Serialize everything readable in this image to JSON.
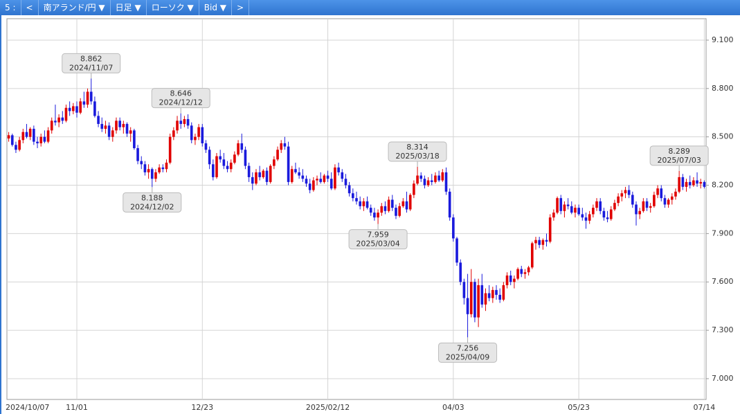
{
  "toolbar": {
    "page": "5 :",
    "prev": "<",
    "pair": "南アランド/円 ▼",
    "period": "日足 ▼",
    "style": "ローソク ▼",
    "side": "Bid ▼",
    "next": ">"
  },
  "chart_data": {
    "type": "candlestick",
    "categories": [
      "2024/10/07",
      null,
      null,
      null,
      null,
      null,
      null,
      null,
      null,
      null,
      null,
      null,
      null,
      null,
      null,
      null,
      null,
      null,
      null,
      "11/01",
      null,
      null,
      null,
      null,
      null,
      null,
      null,
      null,
      null,
      null,
      null,
      null,
      null,
      null,
      null,
      null,
      null,
      null,
      null,
      null,
      null,
      null,
      null,
      null,
      null,
      null,
      null,
      null,
      null,
      null,
      null,
      null,
      null,
      null,
      "12/23",
      null,
      null,
      null,
      null,
      null,
      null,
      null,
      null,
      null,
      null,
      null,
      null,
      null,
      null,
      null,
      null,
      null,
      null,
      null,
      null,
      null,
      null,
      null,
      null,
      null,
      null,
      null,
      null,
      null,
      null,
      null,
      null,
      null,
      null,
      "2025/02/12",
      null,
      null,
      null,
      null,
      null,
      null,
      null,
      null,
      null,
      null,
      null,
      null,
      null,
      null,
      null,
      null,
      null,
      null,
      null,
      null,
      null,
      null,
      null,
      null,
      null,
      null,
      null,
      null,
      null,
      null,
      null,
      null,
      null,
      null,
      "04/03",
      null,
      null,
      null,
      null,
      null,
      null,
      null,
      null,
      null,
      null,
      null,
      null,
      null,
      null,
      null,
      null,
      null,
      null,
      null,
      null,
      null,
      null,
      null,
      null,
      null,
      null,
      null,
      null,
      null,
      null,
      null,
      null,
      null,
      null,
      "05/23",
      null,
      null,
      null,
      null,
      null,
      null,
      null,
      null,
      null,
      null,
      null,
      null,
      null,
      null,
      null,
      null,
      null,
      null,
      null,
      null,
      null,
      null,
      null,
      null,
      null,
      null,
      null,
      null,
      null,
      null,
      null,
      null,
      null,
      null,
      "07/14"
    ],
    "ohlc": [
      [
        8.49,
        8.53,
        8.47,
        8.51
      ],
      [
        8.51,
        8.52,
        8.44,
        8.45
      ],
      [
        8.45,
        8.47,
        8.4,
        8.42
      ],
      [
        8.42,
        8.5,
        8.41,
        8.48
      ],
      [
        8.48,
        8.55,
        8.46,
        8.53
      ],
      [
        8.53,
        8.58,
        8.49,
        8.5
      ],
      [
        8.5,
        8.56,
        8.48,
        8.55
      ],
      [
        8.55,
        8.57,
        8.45,
        8.47
      ],
      [
        8.47,
        8.5,
        8.43,
        8.46
      ],
      [
        8.46,
        8.52,
        8.44,
        8.5
      ],
      [
        8.5,
        8.54,
        8.46,
        8.47
      ],
      [
        8.47,
        8.56,
        8.46,
        8.54
      ],
      [
        8.54,
        8.62,
        8.52,
        8.6
      ],
      [
        8.6,
        8.7,
        8.57,
        8.59
      ],
      [
        8.59,
        8.64,
        8.56,
        8.62
      ],
      [
        8.62,
        8.66,
        8.58,
        8.6
      ],
      [
        8.6,
        8.7,
        8.59,
        8.68
      ],
      [
        8.68,
        8.72,
        8.63,
        8.66
      ],
      [
        8.66,
        8.71,
        8.64,
        8.69
      ],
      [
        8.69,
        8.72,
        8.62,
        8.65
      ],
      [
        8.65,
        8.74,
        8.64,
        8.72
      ],
      [
        8.72,
        8.78,
        8.68,
        8.7
      ],
      [
        8.7,
        8.8,
        8.68,
        8.78
      ],
      [
        8.78,
        8.862,
        8.7,
        8.72
      ],
      [
        8.72,
        8.75,
        8.62,
        8.63
      ],
      [
        8.63,
        8.66,
        8.56,
        8.58
      ],
      [
        8.58,
        8.62,
        8.53,
        8.55
      ],
      [
        8.55,
        8.6,
        8.52,
        8.57
      ],
      [
        8.57,
        8.59,
        8.48,
        8.5
      ],
      [
        8.5,
        8.56,
        8.47,
        8.54
      ],
      [
        8.54,
        8.62,
        8.52,
        8.6
      ],
      [
        8.6,
        8.62,
        8.54,
        8.56
      ],
      [
        8.56,
        8.6,
        8.52,
        8.58
      ],
      [
        8.58,
        8.59,
        8.5,
        8.52
      ],
      [
        8.52,
        8.56,
        8.47,
        8.54
      ],
      [
        8.54,
        8.55,
        8.42,
        8.43
      ],
      [
        8.43,
        8.45,
        8.33,
        8.35
      ],
      [
        8.35,
        8.38,
        8.3,
        8.33
      ],
      [
        8.33,
        8.35,
        8.26,
        8.28
      ],
      [
        8.28,
        8.33,
        8.24,
        8.3
      ],
      [
        8.3,
        8.31,
        8.188,
        8.24
      ],
      [
        8.24,
        8.3,
        8.22,
        8.28
      ],
      [
        8.28,
        8.33,
        8.27,
        8.31
      ],
      [
        8.31,
        8.33,
        8.28,
        8.3
      ],
      [
        8.3,
        8.36,
        8.28,
        8.34
      ],
      [
        8.34,
        8.52,
        8.33,
        8.5
      ],
      [
        8.5,
        8.56,
        8.48,
        8.54
      ],
      [
        8.54,
        8.63,
        8.52,
        8.6
      ],
      [
        8.6,
        8.646,
        8.55,
        8.58
      ],
      [
        8.58,
        8.63,
        8.56,
        8.61
      ],
      [
        8.61,
        8.64,
        8.55,
        8.57
      ],
      [
        8.57,
        8.59,
        8.46,
        8.48
      ],
      [
        8.48,
        8.52,
        8.45,
        8.5
      ],
      [
        8.5,
        8.58,
        8.48,
        8.56
      ],
      [
        8.56,
        8.58,
        8.44,
        8.46
      ],
      [
        8.46,
        8.48,
        8.4,
        8.42
      ],
      [
        8.42,
        8.44,
        8.3,
        8.33
      ],
      [
        8.33,
        8.36,
        8.23,
        8.25
      ],
      [
        8.25,
        8.4,
        8.24,
        8.38
      ],
      [
        8.38,
        8.42,
        8.34,
        8.36
      ],
      [
        8.36,
        8.4,
        8.3,
        8.32
      ],
      [
        8.32,
        8.35,
        8.28,
        8.3
      ],
      [
        8.3,
        8.36,
        8.28,
        8.34
      ],
      [
        8.34,
        8.41,
        8.33,
        8.39
      ],
      [
        8.39,
        8.48,
        8.38,
        8.46
      ],
      [
        8.46,
        8.52,
        8.4,
        8.42
      ],
      [
        8.42,
        8.44,
        8.3,
        8.32
      ],
      [
        8.32,
        8.34,
        8.22,
        8.25
      ],
      [
        8.25,
        8.28,
        8.17,
        8.21
      ],
      [
        8.21,
        8.3,
        8.2,
        8.28
      ],
      [
        8.28,
        8.32,
        8.23,
        8.25
      ],
      [
        8.25,
        8.3,
        8.24,
        8.29
      ],
      [
        8.29,
        8.31,
        8.2,
        8.22
      ],
      [
        8.22,
        8.33,
        8.21,
        8.32
      ],
      [
        8.32,
        8.38,
        8.3,
        8.36
      ],
      [
        8.36,
        8.44,
        8.35,
        8.42
      ],
      [
        8.42,
        8.48,
        8.4,
        8.46
      ],
      [
        8.46,
        8.5,
        8.42,
        8.44
      ],
      [
        8.44,
        8.47,
        8.2,
        8.22
      ],
      [
        8.22,
        8.32,
        8.21,
        8.3
      ],
      [
        8.3,
        8.34,
        8.27,
        8.28
      ],
      [
        8.28,
        8.31,
        8.24,
        8.26
      ],
      [
        8.26,
        8.3,
        8.22,
        8.24
      ],
      [
        8.24,
        8.26,
        8.19,
        8.21
      ],
      [
        8.21,
        8.24,
        8.15,
        8.17
      ],
      [
        8.17,
        8.25,
        8.16,
        8.23
      ],
      [
        8.23,
        8.26,
        8.2,
        8.24
      ],
      [
        8.24,
        8.28,
        8.21,
        8.22
      ],
      [
        8.22,
        8.27,
        8.21,
        8.26
      ],
      [
        8.26,
        8.29,
        8.22,
        8.24
      ],
      [
        8.24,
        8.28,
        8.17,
        8.18
      ],
      [
        8.18,
        8.33,
        8.17,
        8.31
      ],
      [
        8.31,
        8.34,
        8.26,
        8.28
      ],
      [
        8.28,
        8.3,
        8.22,
        8.24
      ],
      [
        8.24,
        8.27,
        8.18,
        8.2
      ],
      [
        8.2,
        8.22,
        8.13,
        8.15
      ],
      [
        8.15,
        8.18,
        8.1,
        8.12
      ],
      [
        8.12,
        8.16,
        8.08,
        8.1
      ],
      [
        8.1,
        8.13,
        8.05,
        8.07
      ],
      [
        8.07,
        8.12,
        8.04,
        8.1
      ],
      [
        8.1,
        8.13,
        8.05,
        8.06
      ],
      [
        8.06,
        8.08,
        8.01,
        8.03
      ],
      [
        8.03,
        8.06,
        7.98,
        8.0
      ],
      [
        8.0,
        8.05,
        7.959,
        8.03
      ],
      [
        8.03,
        8.09,
        8.01,
        8.07
      ],
      [
        8.07,
        8.1,
        8.02,
        8.04
      ],
      [
        8.04,
        8.13,
        8.03,
        8.11
      ],
      [
        8.11,
        8.14,
        8.04,
        8.06
      ],
      [
        8.06,
        8.08,
        7.99,
        8.01
      ],
      [
        8.01,
        8.09,
        8.0,
        8.07
      ],
      [
        8.07,
        8.12,
        8.06,
        8.1
      ],
      [
        8.1,
        8.16,
        8.03,
        8.05
      ],
      [
        8.05,
        8.15,
        8.04,
        8.14
      ],
      [
        8.14,
        8.23,
        8.12,
        8.21
      ],
      [
        8.21,
        8.314,
        8.2,
        8.26
      ],
      [
        8.26,
        8.28,
        8.22,
        8.24
      ],
      [
        8.24,
        8.26,
        8.18,
        8.2
      ],
      [
        8.2,
        8.25,
        8.19,
        8.23
      ],
      [
        8.23,
        8.27,
        8.2,
        8.22
      ],
      [
        8.22,
        8.28,
        8.21,
        8.26
      ],
      [
        8.26,
        8.29,
        8.22,
        8.23
      ],
      [
        8.23,
        8.3,
        8.22,
        8.28
      ],
      [
        8.28,
        8.31,
        8.14,
        8.16
      ],
      [
        8.16,
        8.18,
        7.98,
        8.0
      ],
      [
        8.0,
        8.02,
        7.85,
        7.87
      ],
      [
        7.87,
        7.88,
        7.7,
        7.72
      ],
      [
        7.72,
        7.74,
        7.58,
        7.6
      ],
      [
        7.6,
        7.62,
        7.46,
        7.5
      ],
      [
        7.5,
        7.65,
        7.256,
        7.4
      ],
      [
        7.4,
        7.68,
        7.38,
        7.6
      ],
      [
        7.6,
        7.62,
        7.35,
        7.38
      ],
      [
        7.38,
        7.62,
        7.32,
        7.58
      ],
      [
        7.58,
        7.65,
        7.44,
        7.46
      ],
      [
        7.46,
        7.56,
        7.42,
        7.53
      ],
      [
        7.53,
        7.58,
        7.48,
        7.5
      ],
      [
        7.5,
        7.57,
        7.47,
        7.55
      ],
      [
        7.55,
        7.58,
        7.49,
        7.52
      ],
      [
        7.52,
        7.56,
        7.47,
        7.49
      ],
      [
        7.49,
        7.6,
        7.48,
        7.58
      ],
      [
        7.58,
        7.66,
        7.56,
        7.64
      ],
      [
        7.64,
        7.67,
        7.58,
        7.6
      ],
      [
        7.6,
        7.64,
        7.56,
        7.62
      ],
      [
        7.62,
        7.69,
        7.61,
        7.68
      ],
      [
        7.68,
        7.7,
        7.63,
        7.65
      ],
      [
        7.65,
        7.68,
        7.62,
        7.66
      ],
      [
        7.66,
        7.7,
        7.64,
        7.69
      ],
      [
        7.69,
        7.85,
        7.68,
        7.84
      ],
      [
        7.84,
        7.88,
        7.8,
        7.86
      ],
      [
        7.86,
        7.88,
        7.81,
        7.83
      ],
      [
        7.83,
        7.87,
        7.8,
        7.86
      ],
      [
        7.86,
        7.9,
        7.82,
        7.85
      ],
      [
        7.85,
        8.02,
        7.84,
        8.0
      ],
      [
        8.0,
        8.05,
        7.98,
        8.03
      ],
      [
        8.03,
        8.13,
        8.02,
        8.12
      ],
      [
        8.12,
        8.14,
        8.02,
        8.04
      ],
      [
        8.04,
        8.1,
        8.0,
        8.08
      ],
      [
        8.08,
        8.12,
        8.05,
        8.07
      ],
      [
        8.07,
        8.1,
        8.02,
        8.03
      ],
      [
        8.03,
        8.08,
        8.0,
        8.06
      ],
      [
        8.06,
        8.08,
        8.01,
        8.02
      ],
      [
        8.02,
        8.06,
        7.98,
        8.0
      ],
      [
        8.0,
        8.03,
        7.93,
        7.98
      ],
      [
        7.98,
        8.04,
        7.96,
        8.02
      ],
      [
        8.02,
        8.08,
        8.0,
        8.06
      ],
      [
        8.06,
        8.12,
        8.04,
        8.1
      ],
      [
        8.1,
        8.12,
        8.02,
        8.04
      ],
      [
        8.04,
        8.06,
        7.98,
        8.0
      ],
      [
        8.0,
        8.04,
        7.97,
        7.99
      ],
      [
        7.99,
        8.07,
        7.98,
        8.05
      ],
      [
        8.05,
        8.11,
        8.04,
        8.09
      ],
      [
        8.09,
        8.15,
        8.07,
        8.13
      ],
      [
        8.13,
        8.17,
        8.1,
        8.15
      ],
      [
        8.15,
        8.19,
        8.12,
        8.17
      ],
      [
        8.17,
        8.2,
        8.12,
        8.14
      ],
      [
        8.14,
        8.16,
        8.06,
        8.08
      ],
      [
        8.08,
        8.1,
        7.95,
        8.02
      ],
      [
        8.02,
        8.06,
        7.99,
        8.04
      ],
      [
        8.04,
        8.12,
        8.03,
        8.1
      ],
      [
        8.1,
        8.12,
        8.04,
        8.06
      ],
      [
        8.06,
        8.09,
        8.03,
        8.07
      ],
      [
        8.07,
        8.16,
        8.06,
        8.14
      ],
      [
        8.14,
        8.2,
        8.12,
        8.18
      ],
      [
        8.18,
        8.2,
        8.1,
        8.12
      ],
      [
        8.12,
        8.14,
        8.06,
        8.08
      ],
      [
        8.08,
        8.12,
        8.06,
        8.11
      ],
      [
        8.11,
        8.15,
        8.08,
        8.13
      ],
      [
        8.13,
        8.18,
        8.11,
        8.16
      ],
      [
        8.16,
        8.289,
        8.15,
        8.25
      ],
      [
        8.25,
        8.27,
        8.17,
        8.19
      ],
      [
        8.19,
        8.24,
        8.16,
        8.22
      ],
      [
        8.22,
        8.26,
        8.18,
        8.2
      ],
      [
        8.2,
        8.25,
        8.19,
        8.23
      ],
      [
        8.23,
        8.28,
        8.19,
        8.21
      ],
      [
        8.21,
        8.24,
        8.18,
        8.22
      ],
      [
        8.22,
        8.23,
        8.18,
        8.19
      ]
    ],
    "up_color": "#e00000",
    "down_color": "#1a1adc",
    "ylim": [
      6.871,
      9.233
    ],
    "yticks": [
      {
        "value": 7.0,
        "label": "7.000"
      },
      {
        "value": 7.3,
        "label": "7.300"
      },
      {
        "value": 7.6,
        "label": "7.600"
      },
      {
        "value": 7.9,
        "label": "7.900"
      },
      {
        "value": 8.2,
        "label": "8.200"
      },
      {
        "value": 8.5,
        "label": "8.500"
      },
      {
        "value": 8.8,
        "label": "8.800"
      },
      {
        "value": 9.1,
        "label": "9.100"
      }
    ],
    "grid": true,
    "annotations": [
      {
        "value": 8.862,
        "date": "2024/11/07"
      },
      {
        "value": 8.646,
        "date": "2024/12/12"
      },
      {
        "value": 8.188,
        "date": "2024/12/02"
      },
      {
        "value": 8.314,
        "date": "2025/03/18"
      },
      {
        "value": 7.959,
        "date": "2025/03/04"
      },
      {
        "value": 7.256,
        "date": "2025/04/09"
      },
      {
        "value": 8.289,
        "date": "2025/07/03"
      }
    ]
  }
}
